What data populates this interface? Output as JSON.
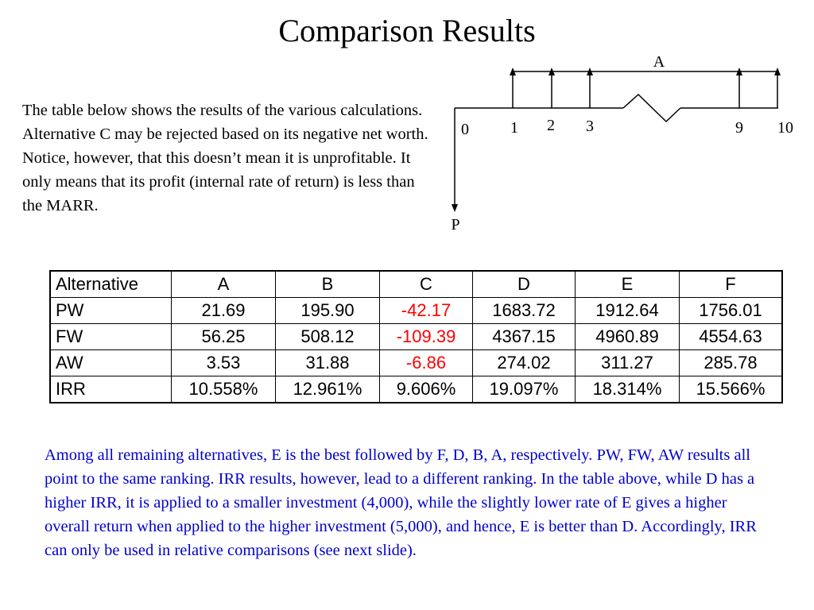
{
  "title": "Comparison Results",
  "intro_text": "The table below shows the results of the various calculations.  Alternative C may be rejected based on its negative net worth.  Notice, however, that this doesn’t mean it is unprofitable.  It only means that its profit (internal rate of return) is less than the MARR.",
  "cashflow_diagram": {
    "annuity_label": "A",
    "present_label": "P",
    "period_labels": [
      "0",
      "1",
      "2",
      "3",
      "9",
      "10"
    ]
  },
  "table": {
    "header_label": "Alternative",
    "columns": [
      "A",
      "B",
      "C",
      "D",
      "E",
      "F"
    ],
    "rows": [
      {
        "label": "PW",
        "values": [
          "21.69",
          "195.90",
          "-42.17",
          "1683.72",
          "1912.64",
          "1756.01"
        ]
      },
      {
        "label": "FW",
        "values": [
          "56.25",
          "508.12",
          "-109.39",
          "4367.15",
          "4960.89",
          "4554.63"
        ]
      },
      {
        "label": "AW",
        "values": [
          "3.53",
          "31.88",
          "-6.86",
          "274.02",
          "311.27",
          "285.78"
        ]
      },
      {
        "label": "IRR",
        "values": [
          "10.558%",
          "12.961%",
          "9.606%",
          "19.097%",
          "18.314%",
          "15.566%"
        ]
      }
    ]
  },
  "colors": {
    "negative_value": "#ff0000",
    "conclusion_text": "#0000cc"
  },
  "conclusion_text": "Among all remaining alternatives, E is the best followed by F, D, B, A, respectively.  PW, FW, AW results all point to the same ranking.  IRR results, however, lead to a different ranking. In the table above, while D has a higher IRR, it is applied to a smaller investment (4,000), while the slightly lower rate of E gives a higher overall return when applied to the higher investment (5,000), and hence, E is better than D. Accordingly, IRR can only be used in relative comparisons (see next slide)."
}
